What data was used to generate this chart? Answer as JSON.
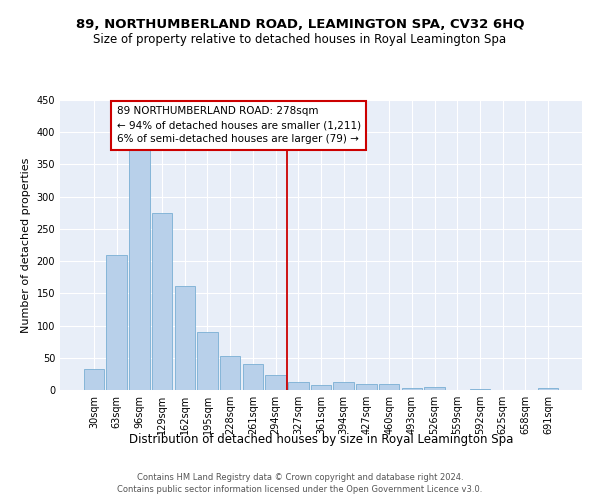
{
  "title": "89, NORTHUMBERLAND ROAD, LEAMINGTON SPA, CV32 6HQ",
  "subtitle": "Size of property relative to detached houses in Royal Leamington Spa",
  "xlabel": "Distribution of detached houses by size in Royal Leamington Spa",
  "ylabel": "Number of detached properties",
  "footer_line1": "Contains HM Land Registry data © Crown copyright and database right 2024.",
  "footer_line2": "Contains public sector information licensed under the Open Government Licence v3.0.",
  "bar_labels": [
    "30sqm",
    "63sqm",
    "96sqm",
    "129sqm",
    "162sqm",
    "195sqm",
    "228sqm",
    "261sqm",
    "294sqm",
    "327sqm",
    "361sqm",
    "394sqm",
    "427sqm",
    "460sqm",
    "493sqm",
    "526sqm",
    "559sqm",
    "592sqm",
    "625sqm",
    "658sqm",
    "691sqm"
  ],
  "bar_values": [
    32,
    210,
    375,
    275,
    162,
    90,
    52,
    40,
    24,
    13,
    7,
    13,
    10,
    10,
    3,
    5,
    0,
    2,
    0,
    0,
    3
  ],
  "bar_color": "#b8d0ea",
  "bar_edge_color": "#7aafd4",
  "vline_x": 8.5,
  "annotation_text": "89 NORTHUMBERLAND ROAD: 278sqm\n← 94% of detached houses are smaller (1,211)\n6% of semi-detached houses are larger (79) →",
  "annotation_box_color": "#ffffff",
  "annotation_box_edge": "#cc0000",
  "vline_color": "#cc0000",
  "ylim": [
    0,
    450
  ],
  "yticks": [
    0,
    50,
    100,
    150,
    200,
    250,
    300,
    350,
    400,
    450
  ],
  "background_color": "#e8eef8",
  "title_fontsize": 9.5,
  "subtitle_fontsize": 8.5,
  "tick_fontsize": 7,
  "ylabel_fontsize": 8,
  "xlabel_fontsize": 8.5,
  "footer_fontsize": 6,
  "annotation_fontsize": 7.5
}
